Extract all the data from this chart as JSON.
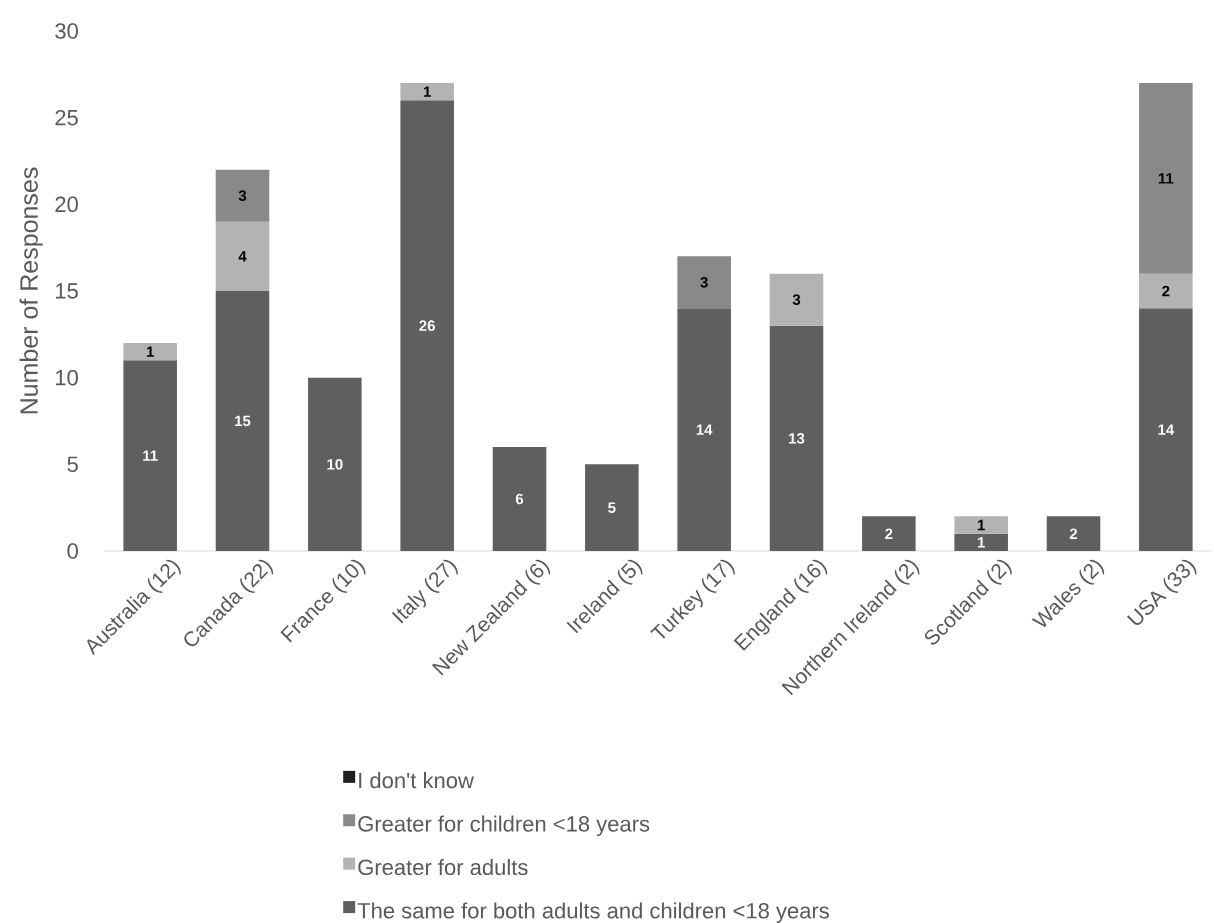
{
  "chart_data": {
    "type": "bar",
    "stacked": true,
    "ylabel": "Number of Responses",
    "categories": [
      "Australia (12)",
      "Canada (22)",
      "France (10)",
      "Italy (27)",
      "New Zealand (6)",
      "Ireland (5)",
      "Turkey (17)",
      "England (16)",
      "Northern Ireland (2)",
      "Scotland (2)",
      "Wales (2)",
      "USA (33)"
    ],
    "series": [
      {
        "name": "The same for both adults and children <18 years",
        "color": "#5f5f5f",
        "values": [
          11,
          15,
          10,
          26,
          6,
          5,
          14,
          13,
          2,
          1,
          2,
          14
        ]
      },
      {
        "name": "Greater for adults",
        "color": "#b3b3b3",
        "values": [
          1,
          4,
          null,
          1,
          null,
          null,
          null,
          3,
          null,
          1,
          null,
          2
        ]
      },
      {
        "name": "Greater for children <18 years",
        "color": "#898989",
        "values": [
          null,
          3,
          null,
          null,
          null,
          null,
          3,
          null,
          null,
          null,
          null,
          11
        ]
      },
      {
        "name": "I don't know",
        "color": "#1f1f1f",
        "values": [
          null,
          null,
          null,
          null,
          null,
          null,
          null,
          null,
          null,
          null,
          null,
          null
        ]
      }
    ],
    "ylim": [
      0,
      30
    ],
    "yticks": [
      0,
      5,
      10,
      15,
      20,
      25,
      30
    ],
    "data_labels": true,
    "legend": "bottom"
  }
}
